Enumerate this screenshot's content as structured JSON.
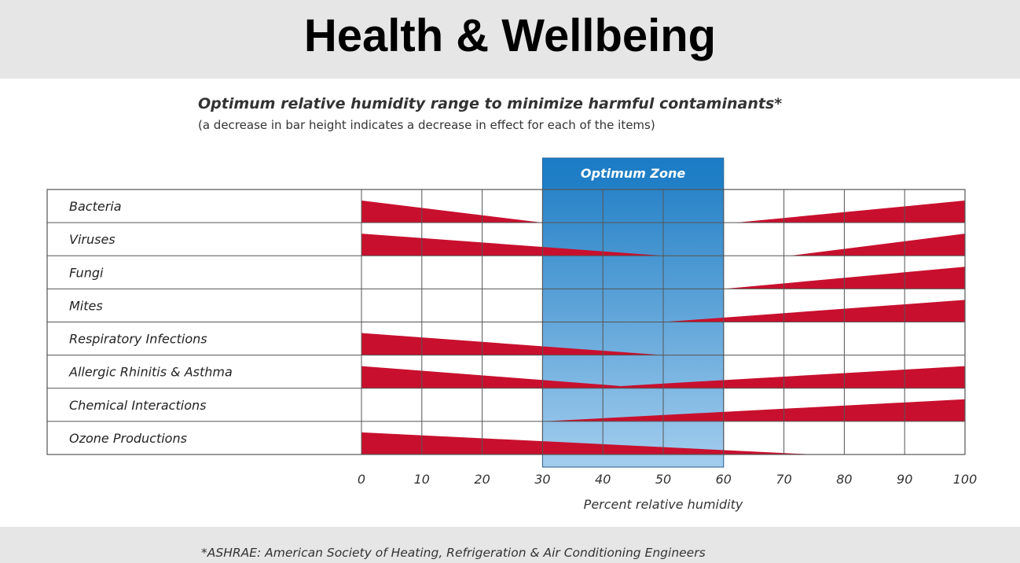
{
  "header": {
    "title": "Health & Wellbeing"
  },
  "footnote": "*ASHRAE: American Society of Heating, Refrigeration & Air Conditioning Engineers",
  "colors": {
    "bar": "#c8102e",
    "zone_top": "#1c7cc4",
    "zone_bottom": "#a3cdee",
    "grid": "#555555",
    "banner": "#e6e6e6"
  },
  "chart_data": {
    "type": "area",
    "title": "Optimum relative humidity range to minimize harmful contaminants*",
    "subtitle": "(a decrease in bar height indicates a decrease in effect for each of the items)",
    "xlabel": "Percent relative humidity",
    "xlim": [
      0,
      100
    ],
    "x_ticks": [
      0,
      10,
      20,
      30,
      40,
      50,
      60,
      70,
      80,
      90,
      100
    ],
    "value_scale": "relative effect, 0 = none, 1 = full row height",
    "optimum_zone": {
      "label": "Optimum Zone",
      "from": 30,
      "to": 60
    },
    "categories": [
      "Bacteria",
      "Viruses",
      "Fungi",
      "Mites",
      "Respiratory Infections",
      "Allergic Rhinitis & Asthma",
      "Chemical Interactions",
      "Ozone Productions"
    ],
    "series": [
      {
        "category": "Bacteria",
        "segments": [
          {
            "x": [
              0,
              30
            ],
            "effect": [
              1.0,
              0.0
            ]
          },
          {
            "x": [
              62,
              100
            ],
            "effect": [
              0.0,
              1.0
            ]
          }
        ]
      },
      {
        "category": "Viruses",
        "segments": [
          {
            "x": [
              0,
              50
            ],
            "effect": [
              1.0,
              0.0
            ]
          },
          {
            "x": [
              71,
              100
            ],
            "effect": [
              0.0,
              1.0
            ]
          }
        ]
      },
      {
        "category": "Fungi",
        "segments": [
          {
            "x": [
              60,
              100
            ],
            "effect": [
              0.0,
              1.0
            ]
          }
        ]
      },
      {
        "category": "Mites",
        "segments": [
          {
            "x": [
              50,
              100
            ],
            "effect": [
              0.0,
              1.0
            ]
          }
        ]
      },
      {
        "category": "Respiratory Infections",
        "segments": [
          {
            "x": [
              0,
              50
            ],
            "effect": [
              1.0,
              0.0
            ]
          }
        ]
      },
      {
        "category": "Allergic Rhinitis & Asthma",
        "segments": [
          {
            "x": [
              0,
              43
            ],
            "effect": [
              1.0,
              0.1
            ]
          },
          {
            "x": [
              43,
              100
            ],
            "effect": [
              0.1,
              1.0
            ]
          }
        ]
      },
      {
        "category": "Chemical Interactions",
        "segments": [
          {
            "x": [
              30,
              100
            ],
            "effect": [
              0.0,
              1.0
            ]
          }
        ]
      },
      {
        "category": "Ozone Productions",
        "segments": [
          {
            "x": [
              0,
              75
            ],
            "effect": [
              1.0,
              0.0
            ]
          }
        ]
      }
    ]
  }
}
